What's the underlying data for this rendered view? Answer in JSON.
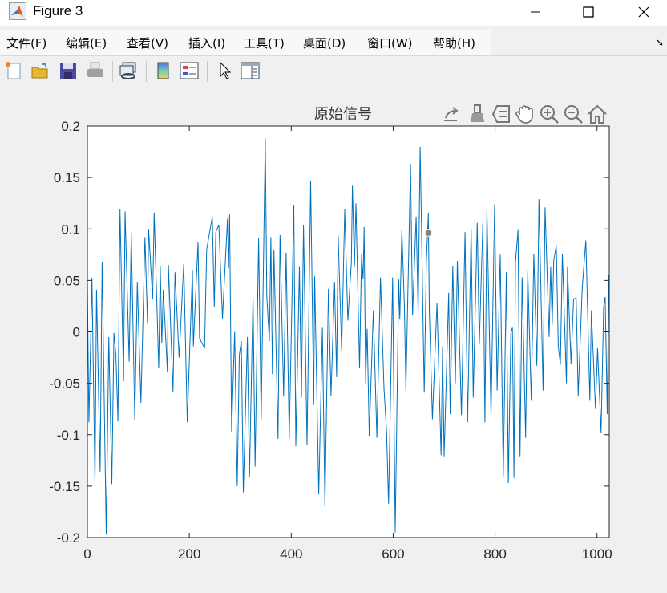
{
  "window": {
    "title": "Figure 3",
    "controls": [
      "minimize",
      "maximize",
      "close"
    ]
  },
  "menu": {
    "items": [
      "文件(F)",
      "编辑(E)",
      "查看(V)",
      "插入(I)",
      "工具(T)",
      "桌面(D)",
      "窗口(W)",
      "帮助(H)"
    ]
  },
  "toolbar": {
    "icons": [
      "new-file-icon",
      "open-folder-icon",
      "save-icon",
      "print-icon",
      "link-icon",
      "colorbar-icon",
      "legend-icon",
      "pointer-icon",
      "property-inspector-icon"
    ]
  },
  "axes_toolbar": {
    "icons": [
      "export-icon",
      "brush-icon",
      "data-tip-icon",
      "pan-hand-icon",
      "zoom-in-icon",
      "zoom-out-icon",
      "home-icon"
    ]
  },
  "colors": {
    "line": "#0072bd",
    "background": "#f0f0f0",
    "axes": "#262626"
  },
  "chart_data": {
    "type": "line",
    "title": "原始信号",
    "xlabel": "",
    "ylabel": "",
    "xlim": [
      0,
      1024
    ],
    "ylim": [
      -0.2,
      0.2
    ],
    "xticks": [
      0,
      200,
      400,
      600,
      800,
      1000
    ],
    "xtick_labels": [
      "0",
      "200",
      "400",
      "600",
      "800",
      "1000"
    ],
    "yticks": [
      0.2,
      0.15,
      0.1,
      0.05,
      0,
      -0.05,
      -0.1,
      -0.15,
      -0.2
    ],
    "ytick_labels": [
      "0.2",
      "0.15",
      "0.1",
      "0.05",
      "0",
      "-0.05",
      "-0.1",
      "-0.15",
      "-0.2"
    ],
    "grid": false,
    "series": [
      {
        "x": [
          0,
          3,
          9,
          15,
          18,
          25,
          29,
          37,
          42,
          48,
          52,
          56,
          60,
          64,
          71,
          74,
          82,
          86,
          93,
          98,
          105,
          113,
          118,
          120,
          128,
          131,
          140,
          143,
          146,
          149,
          157,
          159,
          168,
          172,
          180,
          189,
          196,
          206,
          208,
          217,
          220,
          230,
          234,
          245,
          249,
          252,
          258,
          265,
          275,
          277,
          279,
          283,
          289,
          294,
          298,
          302,
          306,
          314,
          318,
          325,
          329,
          336,
          341,
          349,
          352,
          357,
          360,
          363,
          366,
          374,
          378,
          385,
          390,
          396,
          405,
          409,
          416,
          420,
          424,
          431,
          438,
          444,
          446,
          454,
          461,
          466,
          473,
          478,
          485,
          489,
          492,
          499,
          505,
          511,
          518,
          520,
          524,
          527,
          534,
          538,
          541,
          543,
          546,
          549,
          553,
          561,
          568,
          575,
          582,
          587,
          591,
          599,
          604,
          611,
          613,
          617,
          622,
          625,
          634,
          638,
          645,
          649,
          653,
          661,
          665,
          669,
          671,
          677,
          686,
          694,
          697,
          700,
          709,
          712,
          717,
          722,
          726,
          734,
          741,
          746,
          753,
          757,
          765,
          769,
          776,
          780,
          784,
          792,
          799,
          804,
          810,
          816,
          822,
          826,
          831,
          834,
          837,
          840,
          845,
          849,
          853,
          860,
          864,
          871,
          876,
          882,
          886,
          894,
          898,
          906,
          909,
          912,
          915,
          920,
          924,
          928,
          932,
          940,
          942,
          949,
          954,
          959,
          963,
          971,
          978,
          986,
          989,
          997,
          1001,
          1008,
          1013,
          1016,
          1020,
          1023
        ],
        "y": [
          0.047,
          -0.088,
          0.052,
          -0.148,
          0.041,
          -0.136,
          0.068,
          -0.197,
          -0.005,
          -0.148,
          -0.001,
          -0.023,
          -0.087,
          0.119,
          -0.048,
          0.117,
          -0.029,
          0.097,
          -0.086,
          0.048,
          -0.069,
          0.092,
          0.008,
          0.1,
          0.032,
          0.116,
          -0.035,
          0.064,
          -0.011,
          0.041,
          -0.039,
          0.065,
          -0.058,
          0.058,
          -0.025,
          0.066,
          -0.088,
          0.06,
          -0.014,
          0.087,
          -0.006,
          -0.016,
          0.08,
          0.112,
          0.024,
          0.097,
          0.104,
          0.013,
          0.11,
          0.062,
          0.114,
          -0.097,
          0.0,
          -0.15,
          -0.023,
          -0.009,
          -0.156,
          -0.005,
          -0.141,
          0.034,
          -0.131,
          0.091,
          -0.085,
          0.188,
          0.034,
          -0.009,
          0.092,
          -0.041,
          0.08,
          -0.104,
          0.094,
          -0.063,
          0.077,
          -0.104,
          0.123,
          -0.111,
          0.063,
          -0.064,
          0.104,
          -0.11,
          0.147,
          -0.071,
          0.054,
          -0.158,
          0.004,
          -0.17,
          0.042,
          -0.062,
          0.048,
          -0.044,
          0.094,
          -0.019,
          0.119,
          0.011,
          0.068,
          0.142,
          0.063,
          0.125,
          -0.035,
          0.075,
          0.051,
          0.102,
          -0.05,
          0.003,
          -0.101,
          0.021,
          -0.103,
          0.053,
          -0.055,
          -0.097,
          -0.167,
          0.053,
          -0.195,
          0.051,
          0.012,
          0.099,
          0.027,
          -0.057,
          0.163,
          0.016,
          0.112,
          0.019,
          0.18,
          -0.059,
          0.067,
          0.115,
          0.019,
          -0.085,
          0.028,
          -0.12,
          -0.015,
          -0.121,
          0.038,
          -0.08,
          0.064,
          -0.05,
          0.069,
          -0.081,
          0.097,
          -0.088,
          0.1,
          -0.064,
          0.106,
          -0.012,
          0.106,
          -0.088,
          0.119,
          -0.082,
          0.124,
          -0.057,
          0.075,
          -0.141,
          0.058,
          -0.147,
          0.0,
          0.004,
          -0.142,
          0.068,
          0.099,
          -0.121,
          0.053,
          -0.103,
          0.059,
          -0.067,
          0.076,
          -0.033,
          0.129,
          -0.057,
          0.121,
          -0.005,
          0.063,
          0.007,
          0.069,
          0.084,
          -0.014,
          -0.032,
          0.076,
          -0.05,
          0.063,
          -0.031,
          0.032,
          0.033,
          -0.062,
          0.043,
          0.089,
          -0.067,
          0.021,
          -0.075,
          -0.016,
          -0.098,
          0.024,
          0.034,
          -0.08,
          0.055
        ]
      }
    ],
    "marker": {
      "x": 669,
      "y": 0.096,
      "color": "#808080"
    }
  }
}
